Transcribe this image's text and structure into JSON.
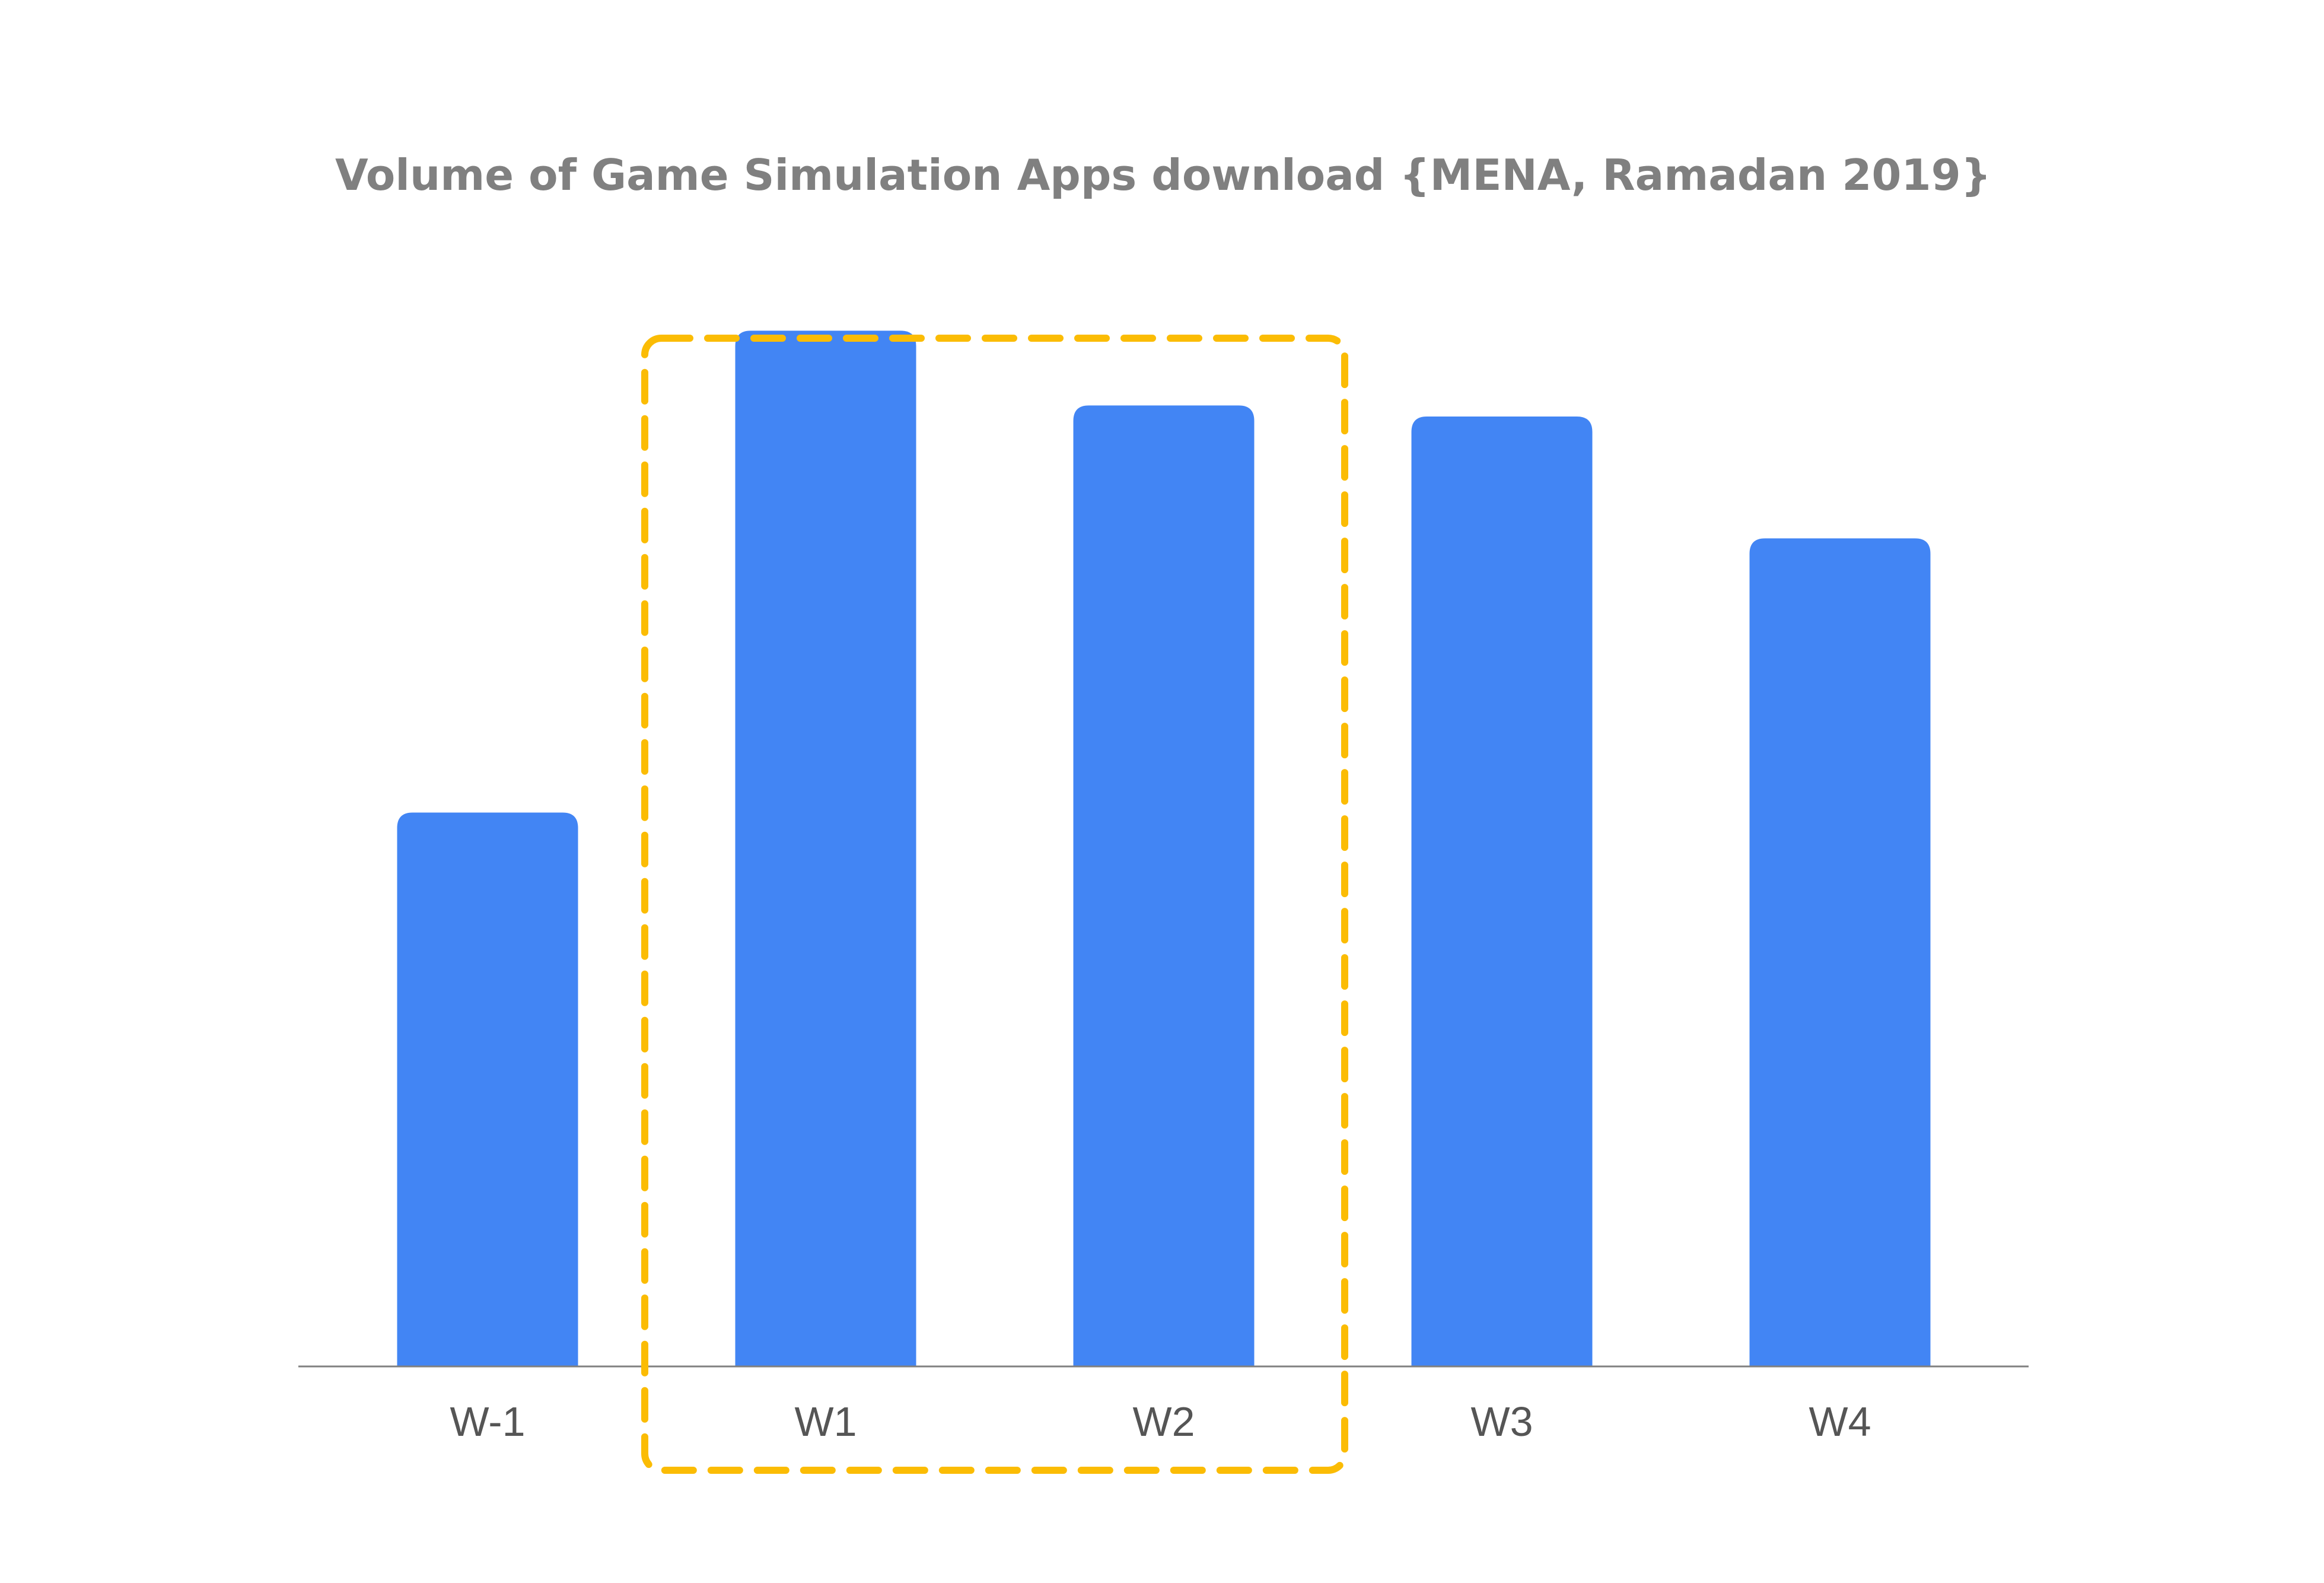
{
  "chart_data": {
    "type": "bar",
    "title": "Volume of Game Simulation Apps download {MENA, Ramadan 2019}",
    "xlabel": "",
    "ylabel": "",
    "categories": [
      "W-1",
      "W1",
      "W2",
      "W3",
      "W4"
    ],
    "values": [
      100,
      187,
      173.5,
      171.5,
      149.5
    ],
    "ylim": [
      0,
      200
    ],
    "grid": false,
    "legend": "none",
    "highlight": {
      "categories": [
        "W1",
        "W2"
      ],
      "style": "dashed-rounded-box"
    },
    "colors": {
      "bar": "#4285F4",
      "highlight": "#FBBC04",
      "title": "#808080",
      "tick_label": "#555555",
      "axis": "#808080"
    }
  }
}
